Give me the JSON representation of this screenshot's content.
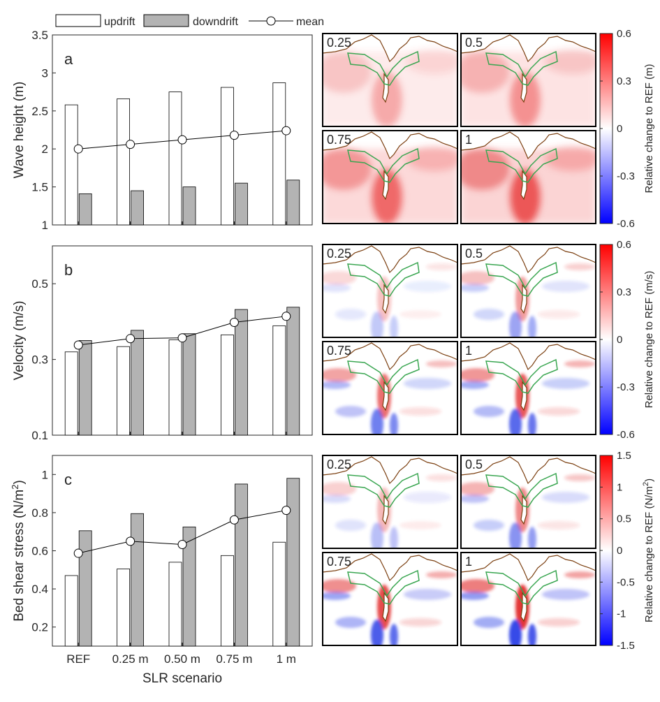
{
  "legend": [
    {
      "key": "updrift",
      "label": "updrift"
    },
    {
      "key": "downdrift",
      "label": "downdrift"
    },
    {
      "key": "mean",
      "label": "mean"
    }
  ],
  "colors": {
    "updrift": "#ffffff",
    "downdrift": "#b3b3b3",
    "mean_line": "#000000",
    "coast": "#7b3f10",
    "zone": "#3aa651"
  },
  "chart_data": [
    {
      "type": "bar",
      "panel": "a",
      "ylabel": "Wave height (m)",
      "ylim": [
        1,
        3.5
      ],
      "yticks": [
        1,
        1.5,
        2,
        2.5,
        3,
        3.5
      ],
      "categories": [
        "REF",
        "0.25 m",
        "0.50 m",
        "0.75 m",
        "1 m"
      ],
      "series": [
        {
          "name": "updrift",
          "values": [
            2.58,
            2.66,
            2.75,
            2.81,
            2.87
          ]
        },
        {
          "name": "downdrift",
          "values": [
            1.41,
            1.45,
            1.5,
            1.55,
            1.59
          ]
        },
        {
          "name": "mean",
          "kind": "line",
          "values": [
            2.0,
            2.06,
            2.12,
            2.18,
            2.24
          ]
        }
      ]
    },
    {
      "type": "bar",
      "panel": "b",
      "ylabel": "Velocity (m/s)",
      "ylim": [
        0.1,
        0.6
      ],
      "yticks": [
        0.1,
        0.3,
        0.5
      ],
      "categories": [
        "REF",
        "0.25 m",
        "0.50 m",
        "0.75 m",
        "1 m"
      ],
      "series": [
        {
          "name": "updrift",
          "values": [
            0.32,
            0.334,
            0.352,
            0.365,
            0.389
          ]
        },
        {
          "name": "downdrift",
          "values": [
            0.35,
            0.377,
            0.368,
            0.432,
            0.438
          ]
        },
        {
          "name": "mean",
          "kind": "line",
          "values": [
            0.338,
            0.355,
            0.357,
            0.398,
            0.414
          ]
        }
      ]
    },
    {
      "type": "bar",
      "panel": "c",
      "ylabel_main": "Bed shear stress (N/m",
      "ylabel_sup": "2",
      "ylabel_tail": ")",
      "ylim": [
        0.1,
        1.1
      ],
      "yticks": [
        0.2,
        0.4,
        0.6,
        0.8,
        1
      ],
      "categories": [
        "REF",
        "0.25 m",
        "0.50 m",
        "0.75 m",
        "1 m"
      ],
      "xlabel": "SLR scenario",
      "series": [
        {
          "name": "updrift",
          "values": [
            0.47,
            0.505,
            0.54,
            0.575,
            0.645
          ]
        },
        {
          "name": "downdrift",
          "values": [
            0.705,
            0.795,
            0.725,
            0.95,
            0.98
          ]
        },
        {
          "name": "mean",
          "kind": "line",
          "values": [
            0.587,
            0.65,
            0.633,
            0.762,
            0.812
          ]
        }
      ]
    }
  ],
  "maps": {
    "rows": [
      {
        "panel": "a",
        "labels": [
          "0.25",
          "0.5",
          "0.75",
          "1"
        ],
        "intensity": [
          0.22,
          0.3,
          0.42,
          0.48
        ],
        "kind": "wave"
      },
      {
        "panel": "b",
        "labels": [
          "0.25",
          "0.5",
          "0.75",
          "1"
        ],
        "intensity": [
          0.25,
          0.42,
          0.6,
          0.7
        ],
        "kind": "flow"
      },
      {
        "panel": "c",
        "labels": [
          "0.25",
          "0.5",
          "0.75",
          "1"
        ],
        "intensity": [
          0.3,
          0.5,
          0.75,
          0.85
        ],
        "kind": "flow"
      }
    ]
  },
  "colorbars": [
    {
      "label_main": "Relative change to REF (m)",
      "label_sup": "",
      "label_tail": "",
      "ticks": [
        "0.6",
        "0.3",
        "0",
        "-0.3",
        "-0.6"
      ]
    },
    {
      "label_main": "Relative change to REF (m/s)",
      "label_sup": "",
      "label_tail": "",
      "ticks": [
        "0.6",
        "0.3",
        "0",
        "-0.3",
        "-0.6"
      ]
    },
    {
      "label_main": "Relative change to REF (N/m",
      "label_sup": "2",
      "label_tail": ")",
      "ticks": [
        "1.5",
        "1",
        "0.5",
        "0",
        "-0.5",
        "-1",
        "-1.5"
      ]
    }
  ]
}
